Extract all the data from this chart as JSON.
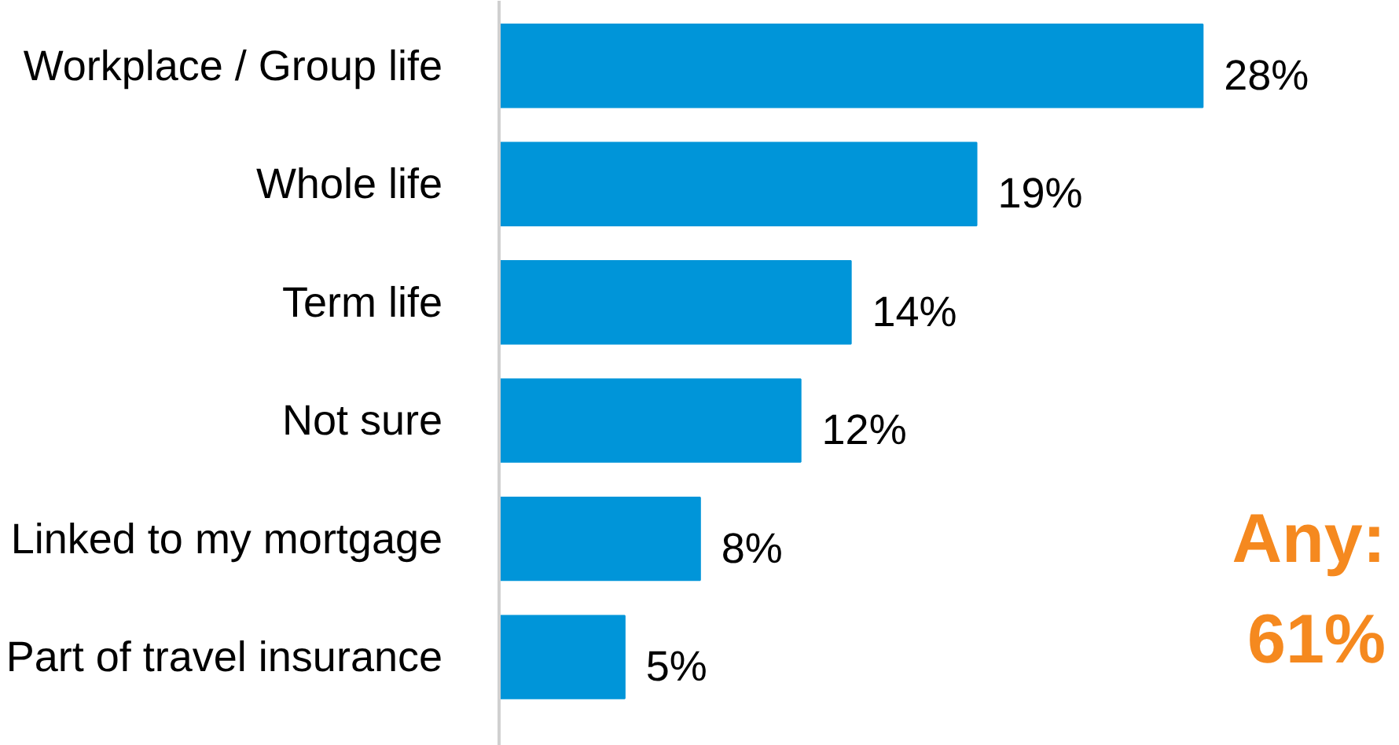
{
  "chart_data": {
    "type": "bar",
    "orientation": "horizontal",
    "categories": [
      "Workplace / Group life",
      "Whole life",
      "Term life",
      "Not sure",
      "Linked to my mortgage",
      "Part of travel insurance"
    ],
    "values": [
      28,
      19,
      14,
      12,
      8,
      5
    ],
    "color": "#0095d9",
    "value_labels": [
      "28%",
      "19%",
      "14%",
      "12%",
      "8%",
      "5%"
    ],
    "annotations": [
      "Any:\n61%"
    ],
    "grid": false
  }
}
